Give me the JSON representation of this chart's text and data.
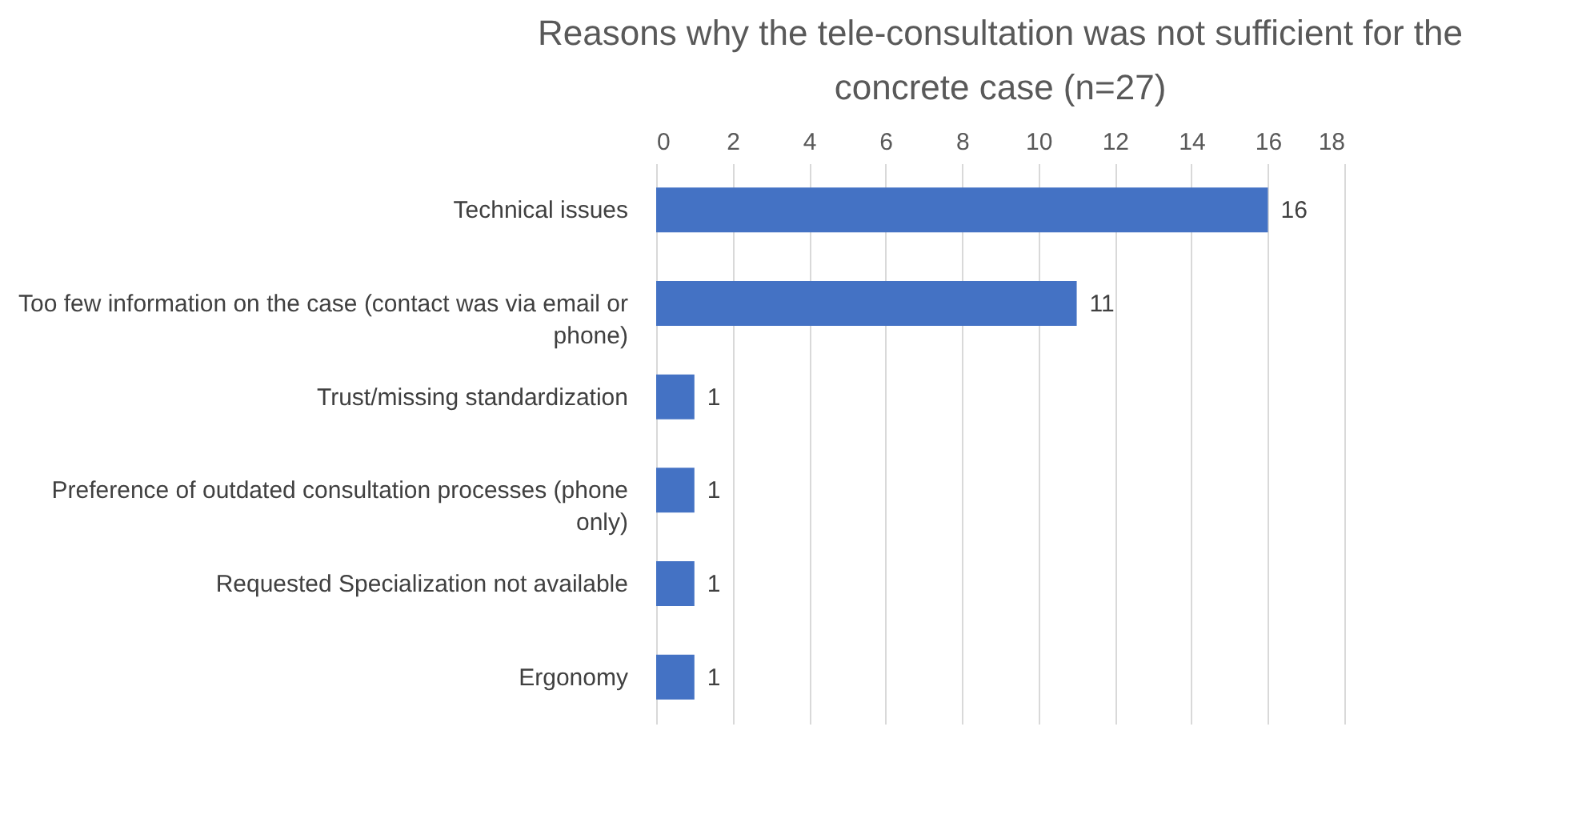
{
  "chart_data": {
    "type": "bar",
    "orientation": "horizontal",
    "title": "Reasons why the tele-consultation was not sufficient for the concrete case (n=27)",
    "categories": [
      "Technical issues",
      "Too few information on the case (contact was via email or phone)",
      "Trust/missing standardization",
      "Preference of outdated consultation processes (phone only)",
      "Requested Specialization not available",
      "Ergonomy"
    ],
    "values": [
      16,
      11,
      1,
      1,
      1,
      1
    ],
    "color": "#4472c4",
    "xlim": [
      0,
      18
    ],
    "xticks": [
      0,
      2,
      4,
      6,
      8,
      10,
      12,
      14,
      16,
      18
    ],
    "grid": "x",
    "data_labels": true
  }
}
